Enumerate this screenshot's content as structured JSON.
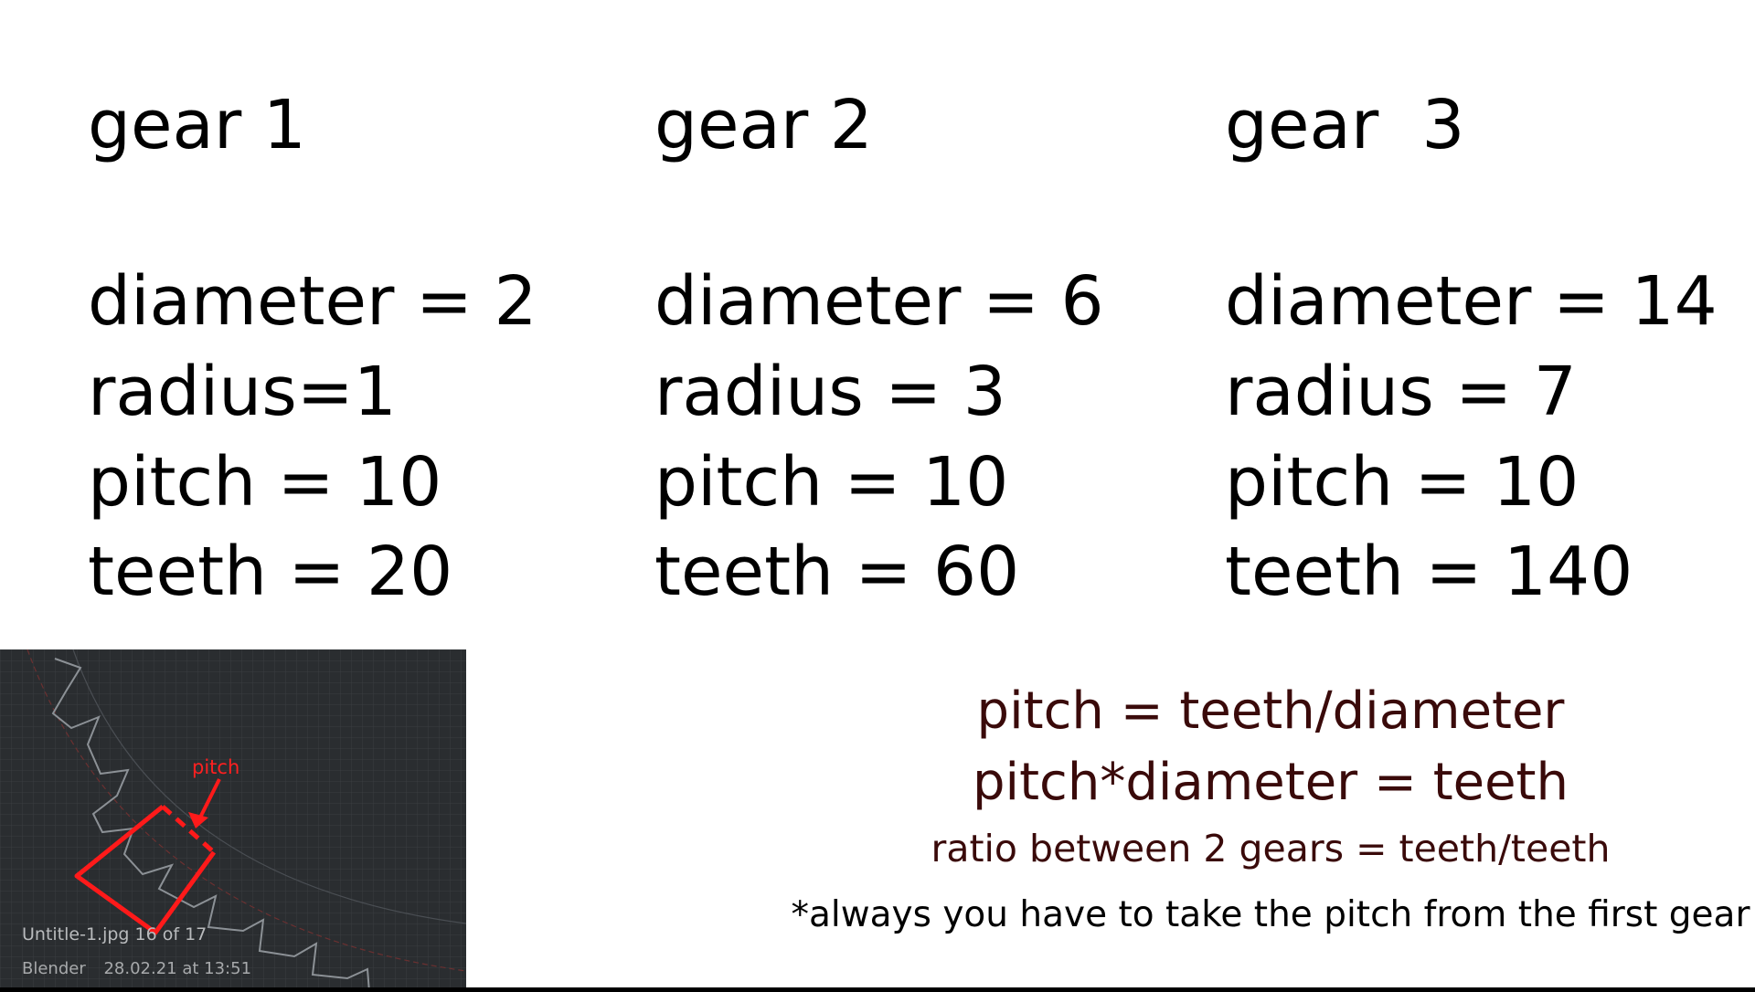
{
  "gears": [
    {
      "title": "gear 1",
      "lines": [
        "diameter = 2",
        "radius=1",
        "pitch = 10",
        "teeth = 20"
      ]
    },
    {
      "title": "gear 2",
      "lines": [
        "diameter = 6",
        "radius = 3",
        "pitch = 10",
        "teeth = 60"
      ]
    },
    {
      "title": "gear  3",
      "lines": [
        "diameter = 14",
        "radius = 7",
        "pitch = 10",
        "teeth = 140"
      ]
    }
  ],
  "formulas": {
    "line1": "pitch = teeth/diameter",
    "line2": "pitch*diameter = teeth",
    "line3": "ratio between 2 gears = teeth/teeth",
    "note": "*always you have to take the pitch from the first gear"
  },
  "thumbnail": {
    "annotation": "pitch",
    "file_label": "Untitle-1.jpg 16 of 17",
    "app": "Blender",
    "date": "28.02.21 at 13:51"
  }
}
